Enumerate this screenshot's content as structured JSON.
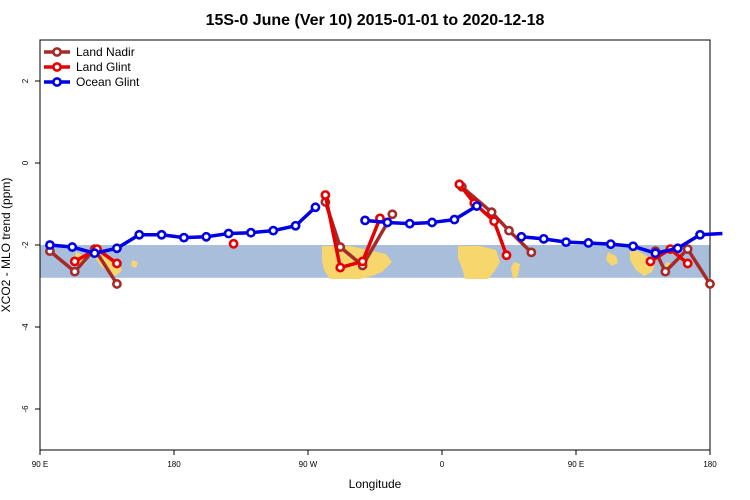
{
  "chart_data": {
    "type": "line",
    "title": "15S-0 June (Ver 10)   2015-01-01 to 2020-12-18",
    "xlabel": "Longitude",
    "ylabel": "XCO2 - MLO trend (ppm)",
    "xlim": [
      -90,
      180
    ],
    "ylim": [
      -7,
      3
    ],
    "x_ticks": [
      {
        "value": -90,
        "label": "90 E"
      },
      {
        "value": -36,
        "label": "180"
      },
      {
        "value": 18,
        "label": "90 W"
      },
      {
        "value": 72,
        "label": "0"
      },
      {
        "value": 126,
        "label": "90 E"
      },
      {
        "value": 180,
        "label": "180"
      }
    ],
    "y_ticks": [
      {
        "value": 2,
        "label": "2"
      },
      {
        "value": 0,
        "label": "0"
      },
      {
        "value": -2,
        "label": "-2"
      },
      {
        "value": -4,
        "label": "-4"
      },
      {
        "value": -6,
        "label": "-6"
      }
    ],
    "map_band": {
      "y_top": -2.0,
      "y_bottom": -2.8
    },
    "legend": {
      "position": "top-left"
    },
    "series": [
      {
        "name": "Land Nadir",
        "color": "#A52A2A",
        "segments": [
          [
            [
              -86,
              -2.15
            ],
            [
              -76,
              -2.65
            ],
            [
              -68,
              -2.1
            ],
            [
              -59,
              -2.95
            ]
          ],
          [
            [
              25,
              -0.95
            ],
            [
              31,
              -2.05
            ],
            [
              40,
              -2.5
            ],
            [
              52,
              -1.25
            ]
          ],
          [
            [
              80,
              -0.58
            ],
            [
              92,
              -1.2
            ],
            [
              99,
              -1.65
            ],
            [
              108,
              -2.18
            ]
          ],
          [
            [
              158,
              -2.15
            ],
            [
              162,
              -2.65
            ],
            [
              171,
              -2.1
            ],
            [
              180,
              -2.95
            ]
          ]
        ]
      },
      {
        "name": "Land Glint",
        "color": "#E60000",
        "segments": [
          [
            [
              -76,
              -2.4
            ],
            [
              -67,
              -2.1
            ],
            [
              -59,
              -2.45
            ]
          ],
          [
            [
              -12,
              -1.97
            ]
          ],
          [
            [
              25,
              -0.78
            ],
            [
              31,
              -2.55
            ],
            [
              40,
              -2.4
            ],
            [
              47,
              -1.35
            ]
          ],
          [
            [
              79,
              -0.52
            ],
            [
              85,
              -0.98
            ],
            [
              93,
              -1.42
            ],
            [
              98,
              -2.25
            ]
          ],
          [
            [
              156,
              -2.4
            ],
            [
              164,
              -2.1
            ],
            [
              171,
              -2.45
            ]
          ]
        ]
      },
      {
        "name": "Ocean Glint",
        "color": "#0000E6",
        "segments": [
          [
            [
              -86,
              -2.0
            ],
            [
              -77,
              -2.05
            ],
            [
              -68,
              -2.2
            ],
            [
              -59,
              -2.08
            ],
            [
              -50,
              -1.75
            ],
            [
              -41,
              -1.75
            ],
            [
              -32,
              -1.82
            ],
            [
              -23,
              -1.8
            ],
            [
              -14,
              -1.72
            ],
            [
              -5,
              -1.7
            ],
            [
              4,
              -1.65
            ],
            [
              13,
              -1.53
            ],
            [
              21,
              -1.08
            ]
          ],
          [
            [
              41,
              -1.4
            ],
            [
              50,
              -1.45
            ],
            [
              59,
              -1.48
            ],
            [
              68,
              -1.45
            ],
            [
              77,
              -1.38
            ],
            [
              86,
              -1.05
            ]
          ],
          [
            [
              104,
              -1.8
            ],
            [
              113,
              -1.85
            ],
            [
              122,
              -1.93
            ],
            [
              131,
              -1.95
            ],
            [
              140,
              -1.98
            ],
            [
              149,
              -2.03
            ],
            [
              158,
              -2.2
            ],
            [
              167,
              -2.08
            ],
            [
              176,
              -1.75
            ],
            [
              185,
              -1.72
            ]
          ]
        ]
      }
    ]
  }
}
